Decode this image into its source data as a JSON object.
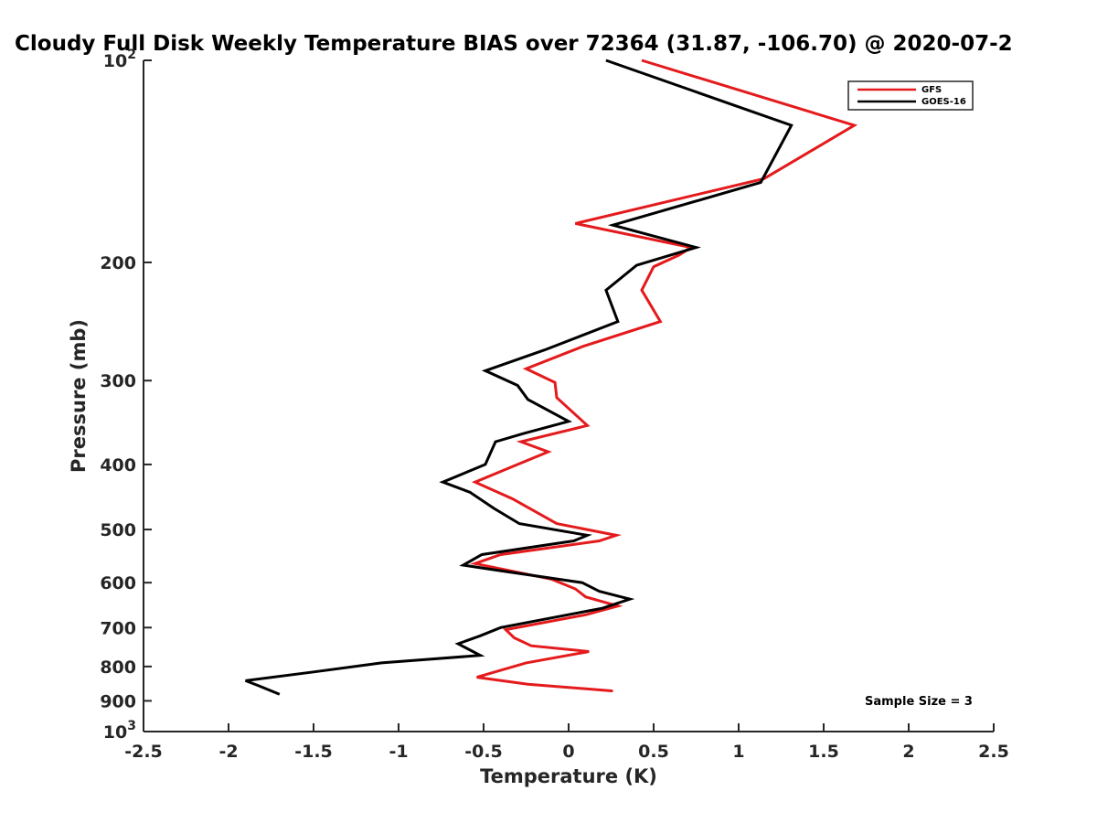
{
  "chart_data": {
    "type": "line",
    "title": "Cloudy Full Disk Weekly Temperature BIAS over 72364 (31.87, -106.70) @ 2020-07-2",
    "xlabel": "Temperature (K)",
    "ylabel": "Pressure (mb)",
    "xlim": [
      -2.5,
      2.5
    ],
    "ylim": [
      100,
      1000
    ],
    "y_scale": "log",
    "y_reversed": true,
    "grid": false,
    "legend_position": "top-right",
    "x_ticks": [
      -2.5,
      -2,
      -1.5,
      -1,
      -0.5,
      0,
      0.5,
      1,
      1.5,
      2,
      2.5
    ],
    "x_tick_labels": [
      "-2.5",
      "-2",
      "-1.5",
      "-1",
      "-0.5",
      "0",
      "0.5",
      "1",
      "1.5",
      "2",
      "2.5"
    ],
    "y_ticks": [
      {
        "value": 100,
        "base": "10",
        "exp": "2"
      },
      {
        "value": 200,
        "label": "200"
      },
      {
        "value": 300,
        "label": "300"
      },
      {
        "value": 400,
        "label": "400"
      },
      {
        "value": 500,
        "label": "500"
      },
      {
        "value": 600,
        "label": "600"
      },
      {
        "value": 700,
        "label": "700"
      },
      {
        "value": 800,
        "label": "800"
      },
      {
        "value": 900,
        "label": "900"
      },
      {
        "value": 1000,
        "base": "10",
        "exp": "3"
      }
    ],
    "series": [
      {
        "name": "GFS",
        "color": "#e41a1c",
        "points": [
          [
            0.43,
            100
          ],
          [
            1.68,
            125
          ],
          [
            1.15,
            150
          ],
          [
            0.04,
            175
          ],
          [
            0.72,
            190
          ],
          [
            0.65,
            195
          ],
          [
            0.5,
            203
          ],
          [
            0.43,
            220
          ],
          [
            0.54,
            245
          ],
          [
            0.08,
            267
          ],
          [
            -0.25,
            288
          ],
          [
            -0.08,
            302
          ],
          [
            -0.07,
            318
          ],
          [
            0.11,
            350
          ],
          [
            -0.28,
            370
          ],
          [
            -0.12,
            383
          ],
          [
            -0.3,
            400
          ],
          [
            -0.55,
            425
          ],
          [
            -0.33,
            450
          ],
          [
            -0.07,
            490
          ],
          [
            0.28,
            510
          ],
          [
            0.18,
            520
          ],
          [
            -0.4,
            545
          ],
          [
            -0.55,
            562
          ],
          [
            -0.1,
            593
          ],
          [
            0.04,
            613
          ],
          [
            0.1,
            630
          ],
          [
            0.29,
            650
          ],
          [
            0.1,
            670
          ],
          [
            -0.37,
            705
          ],
          [
            -0.32,
            725
          ],
          [
            -0.22,
            745
          ],
          [
            0.12,
            760
          ],
          [
            -0.25,
            790
          ],
          [
            -0.54,
            830
          ],
          [
            -0.24,
            850
          ],
          [
            0.26,
            870
          ]
        ]
      },
      {
        "name": "GOES-16",
        "color": "#000000",
        "points": [
          [
            0.22,
            100
          ],
          [
            1.31,
            125
          ],
          [
            1.13,
            152
          ],
          [
            0.26,
            176
          ],
          [
            0.75,
            190
          ],
          [
            0.4,
            202
          ],
          [
            0.22,
            220
          ],
          [
            0.29,
            245
          ],
          [
            -0.14,
            270
          ],
          [
            -0.49,
            290
          ],
          [
            -0.3,
            305
          ],
          [
            -0.24,
            320
          ],
          [
            0.0,
            345
          ],
          [
            -0.27,
            360
          ],
          [
            -0.43,
            370
          ],
          [
            -0.49,
            400
          ],
          [
            -0.74,
            425
          ],
          [
            -0.58,
            440
          ],
          [
            -0.44,
            465
          ],
          [
            -0.29,
            490
          ],
          [
            0.11,
            510
          ],
          [
            0.03,
            520
          ],
          [
            -0.51,
            545
          ],
          [
            -0.62,
            565
          ],
          [
            -0.42,
            575
          ],
          [
            0.08,
            600
          ],
          [
            0.18,
            618
          ],
          [
            0.36,
            635
          ],
          [
            0.2,
            655
          ],
          [
            -0.4,
            700
          ],
          [
            -0.52,
            720
          ],
          [
            -0.65,
            740
          ],
          [
            -0.52,
            770
          ],
          [
            -1.1,
            790
          ],
          [
            -1.5,
            815
          ],
          [
            -1.9,
            840
          ],
          [
            -1.82,
            855
          ],
          [
            -1.7,
            880
          ]
        ]
      }
    ],
    "annotation": "Sample Size = 3"
  }
}
